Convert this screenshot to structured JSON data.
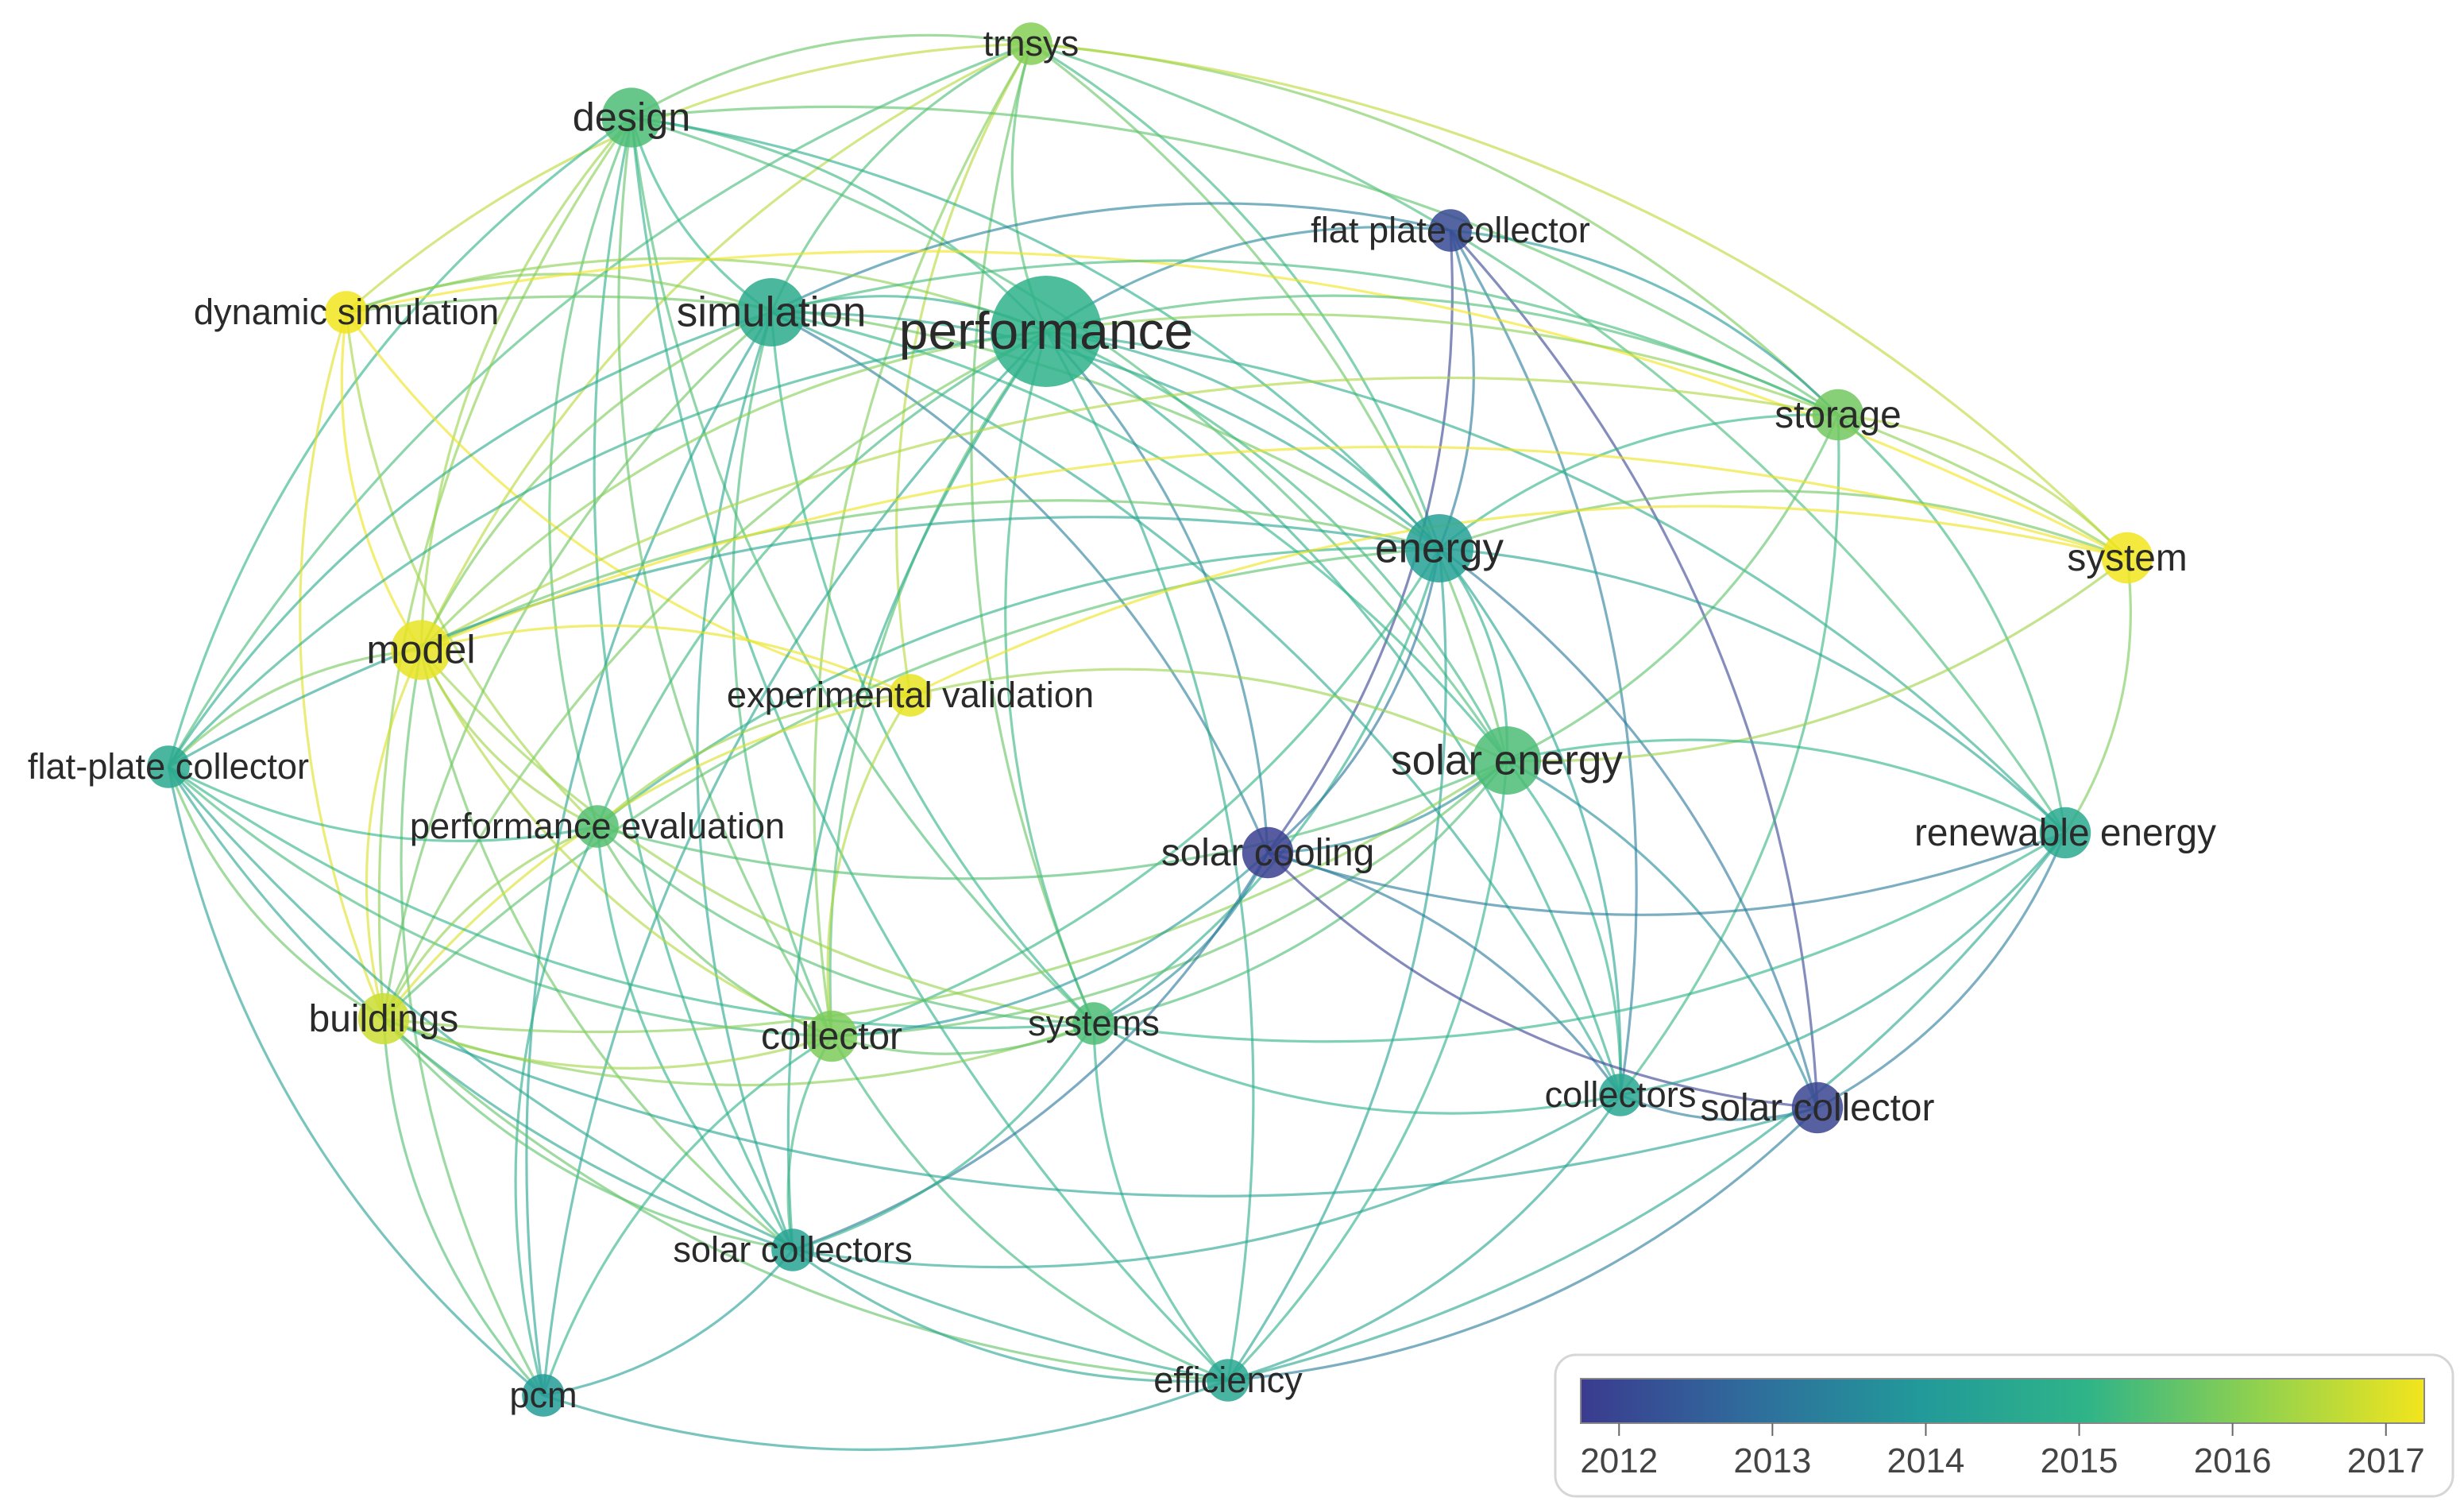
{
  "network": {
    "nodes": [
      {
        "id": "trnsys",
        "label": "trnsys",
        "year": 2015.9,
        "weight": 2
      },
      {
        "id": "design",
        "label": "design",
        "year": 2015.3,
        "weight": 4
      },
      {
        "id": "flat_plate_collector",
        "label": "flat plate collector",
        "year": 2012.3,
        "weight": 2
      },
      {
        "id": "dynamic_simulation",
        "label": "dynamic simulation",
        "year": 2017.0,
        "weight": 2
      },
      {
        "id": "simulation",
        "label": "simulation",
        "year": 2014.7,
        "weight": 5
      },
      {
        "id": "performance",
        "label": "performance",
        "year": 2014.9,
        "weight": 10
      },
      {
        "id": "storage",
        "label": "storage",
        "year": 2015.7,
        "weight": 3
      },
      {
        "id": "energy",
        "label": "energy",
        "year": 2014.3,
        "weight": 5
      },
      {
        "id": "system",
        "label": "system",
        "year": 2017.0,
        "weight": 3
      },
      {
        "id": "model",
        "label": "model",
        "year": 2016.9,
        "weight": 4
      },
      {
        "id": "experimental_validation",
        "label": "experimental validation",
        "year": 2016.9,
        "weight": 2
      },
      {
        "id": "flat_plate_collector_hyphen",
        "label": "flat-plate collector",
        "year": 2014.6,
        "weight": 2
      },
      {
        "id": "solar_energy",
        "label": "solar energy",
        "year": 2015.3,
        "weight": 5
      },
      {
        "id": "performance_evaluation",
        "label": "performance evaluation",
        "year": 2015.4,
        "weight": 2
      },
      {
        "id": "solar_cooling",
        "label": "solar cooling",
        "year": 2012.1,
        "weight": 3
      },
      {
        "id": "renewable_energy",
        "label": "renewable energy",
        "year": 2014.6,
        "weight": 3
      },
      {
        "id": "buildings",
        "label": "buildings",
        "year": 2016.6,
        "weight": 3
      },
      {
        "id": "collector",
        "label": "collector",
        "year": 2015.8,
        "weight": 3
      },
      {
        "id": "systems",
        "label": "systems",
        "year": 2015.3,
        "weight": 2
      },
      {
        "id": "collectors",
        "label": "collectors",
        "year": 2014.5,
        "weight": 2
      },
      {
        "id": "solar_collector",
        "label": "solar collector",
        "year": 2012.2,
        "weight": 3
      },
      {
        "id": "solar_collectors",
        "label": "solar collectors",
        "year": 2014.4,
        "weight": 2
      },
      {
        "id": "efficiency",
        "label": "efficiency",
        "year": 2014.5,
        "weight": 2
      },
      {
        "id": "pcm",
        "label": "pcm",
        "year": 2014.1,
        "weight": 2
      }
    ],
    "links": [
      [
        "trnsys",
        "design"
      ],
      [
        "trnsys",
        "simulation"
      ],
      [
        "trnsys",
        "performance"
      ],
      [
        "trnsys",
        "storage"
      ],
      [
        "trnsys",
        "energy"
      ],
      [
        "trnsys",
        "dynamic_simulation"
      ],
      [
        "trnsys",
        "model"
      ],
      [
        "trnsys",
        "flat_plate_collector_hyphen"
      ],
      [
        "trnsys",
        "experimental_validation"
      ],
      [
        "trnsys",
        "systems"
      ],
      [
        "trnsys",
        "solar_energy"
      ],
      [
        "trnsys",
        "renewable_energy"
      ],
      [
        "trnsys",
        "collector"
      ],
      [
        "trnsys",
        "system"
      ],
      [
        "design",
        "simulation"
      ],
      [
        "design",
        "performance"
      ],
      [
        "design",
        "energy"
      ],
      [
        "design",
        "model"
      ],
      [
        "design",
        "flat_plate_collector_hyphen"
      ],
      [
        "design",
        "collector"
      ],
      [
        "design",
        "solar_collectors"
      ],
      [
        "design",
        "buildings"
      ],
      [
        "design",
        "performance_evaluation"
      ],
      [
        "design",
        "solar_energy"
      ],
      [
        "design",
        "storage"
      ],
      [
        "design",
        "systems"
      ],
      [
        "design",
        "efficiency"
      ],
      [
        "flat_plate_collector",
        "energy"
      ],
      [
        "flat_plate_collector",
        "solar_cooling"
      ],
      [
        "flat_plate_collector",
        "solar_collector"
      ],
      [
        "flat_plate_collector",
        "performance"
      ],
      [
        "flat_plate_collector",
        "storage"
      ],
      [
        "flat_plate_collector",
        "collectors"
      ],
      [
        "flat_plate_collector",
        "simulation"
      ],
      [
        "dynamic_simulation",
        "simulation"
      ],
      [
        "dynamic_simulation",
        "model"
      ],
      [
        "dynamic_simulation",
        "performance_evaluation"
      ],
      [
        "dynamic_simulation",
        "buildings"
      ],
      [
        "dynamic_simulation",
        "experimental_validation"
      ],
      [
        "dynamic_simulation",
        "performance"
      ],
      [
        "dynamic_simulation",
        "system"
      ],
      [
        "dynamic_simulation",
        "energy"
      ],
      [
        "simulation",
        "performance"
      ],
      [
        "simulation",
        "energy"
      ],
      [
        "simulation",
        "model"
      ],
      [
        "simulation",
        "solar_energy"
      ],
      [
        "simulation",
        "collector"
      ],
      [
        "simulation",
        "systems"
      ],
      [
        "simulation",
        "solar_collectors"
      ],
      [
        "simulation",
        "storage"
      ],
      [
        "simulation",
        "flat_plate_collector_hyphen"
      ],
      [
        "simulation",
        "buildings"
      ],
      [
        "simulation",
        "pcm"
      ],
      [
        "simulation",
        "collectors"
      ],
      [
        "simulation",
        "solar_cooling"
      ],
      [
        "performance",
        "energy"
      ],
      [
        "performance",
        "solar_energy"
      ],
      [
        "performance",
        "storage"
      ],
      [
        "performance",
        "model"
      ],
      [
        "performance",
        "collector"
      ],
      [
        "performance",
        "systems"
      ],
      [
        "performance",
        "solar_collectors"
      ],
      [
        "performance",
        "efficiency"
      ],
      [
        "performance",
        "renewable_energy"
      ],
      [
        "performance",
        "collectors"
      ],
      [
        "performance",
        "solar_cooling"
      ],
      [
        "performance",
        "buildings"
      ],
      [
        "performance",
        "performance_evaluation"
      ],
      [
        "performance",
        "pcm"
      ],
      [
        "performance",
        "flat_plate_collector_hyphen"
      ],
      [
        "performance",
        "system"
      ],
      [
        "storage",
        "energy"
      ],
      [
        "storage",
        "system"
      ],
      [
        "storage",
        "renewable_energy"
      ],
      [
        "storage",
        "solar_energy"
      ],
      [
        "storage",
        "model"
      ],
      [
        "storage",
        "collectors"
      ],
      [
        "energy",
        "solar_energy"
      ],
      [
        "energy",
        "system"
      ],
      [
        "energy",
        "renewable_energy"
      ],
      [
        "energy",
        "model"
      ],
      [
        "energy",
        "collector"
      ],
      [
        "energy",
        "systems"
      ],
      [
        "energy",
        "collectors"
      ],
      [
        "energy",
        "solar_collector"
      ],
      [
        "energy",
        "efficiency"
      ],
      [
        "energy",
        "performance_evaluation"
      ],
      [
        "energy",
        "flat_plate_collector_hyphen"
      ],
      [
        "energy",
        "solar_cooling"
      ],
      [
        "energy",
        "buildings"
      ],
      [
        "system",
        "model"
      ],
      [
        "system",
        "renewable_energy"
      ],
      [
        "system",
        "solar_energy"
      ],
      [
        "system",
        "experimental_validation"
      ],
      [
        "model",
        "experimental_validation"
      ],
      [
        "model",
        "performance_evaluation"
      ],
      [
        "model",
        "buildings"
      ],
      [
        "model",
        "collector"
      ],
      [
        "model",
        "flat_plate_collector_hyphen"
      ],
      [
        "model",
        "systems"
      ],
      [
        "model",
        "solar_collectors"
      ],
      [
        "model",
        "pcm"
      ],
      [
        "experimental_validation",
        "performance_evaluation"
      ],
      [
        "experimental_validation",
        "collector"
      ],
      [
        "experimental_validation",
        "solar_energy"
      ],
      [
        "experimental_validation",
        "buildings"
      ],
      [
        "flat_plate_collector_hyphen",
        "performance_evaluation"
      ],
      [
        "flat_plate_collector_hyphen",
        "buildings"
      ],
      [
        "flat_plate_collector_hyphen",
        "collector"
      ],
      [
        "flat_plate_collector_hyphen",
        "pcm"
      ],
      [
        "flat_plate_collector_hyphen",
        "systems"
      ],
      [
        "flat_plate_collector_hyphen",
        "solar_collectors"
      ],
      [
        "flat_plate_collector_hyphen",
        "efficiency"
      ],
      [
        "solar_energy",
        "renewable_energy"
      ],
      [
        "solar_energy",
        "collectors"
      ],
      [
        "solar_energy",
        "solar_cooling"
      ],
      [
        "solar_energy",
        "collector"
      ],
      [
        "solar_energy",
        "systems"
      ],
      [
        "solar_energy",
        "solar_collector"
      ],
      [
        "solar_energy",
        "performance_evaluation"
      ],
      [
        "solar_energy",
        "buildings"
      ],
      [
        "solar_energy",
        "efficiency"
      ],
      [
        "performance_evaluation",
        "buildings"
      ],
      [
        "performance_evaluation",
        "collector"
      ],
      [
        "performance_evaluation",
        "systems"
      ],
      [
        "performance_evaluation",
        "solar_collectors"
      ],
      [
        "performance_evaluation",
        "pcm"
      ],
      [
        "solar_cooling",
        "collectors"
      ],
      [
        "solar_cooling",
        "solar_collector"
      ],
      [
        "solar_cooling",
        "systems"
      ],
      [
        "solar_cooling",
        "collector"
      ],
      [
        "solar_cooling",
        "solar_collectors"
      ],
      [
        "solar_cooling",
        "renewable_energy"
      ],
      [
        "renewable_energy",
        "collectors"
      ],
      [
        "renewable_energy",
        "solar_collector"
      ],
      [
        "renewable_energy",
        "efficiency"
      ],
      [
        "renewable_energy",
        "systems"
      ],
      [
        "buildings",
        "collector"
      ],
      [
        "buildings",
        "systems"
      ],
      [
        "buildings",
        "pcm"
      ],
      [
        "buildings",
        "efficiency"
      ],
      [
        "buildings",
        "solar_collectors"
      ],
      [
        "collector",
        "systems"
      ],
      [
        "collector",
        "solar_collectors"
      ],
      [
        "collector",
        "efficiency"
      ],
      [
        "collector",
        "pcm"
      ],
      [
        "systems",
        "efficiency"
      ],
      [
        "systems",
        "solar_collectors"
      ],
      [
        "systems",
        "collectors"
      ],
      [
        "collectors",
        "solar_collector"
      ],
      [
        "collectors",
        "efficiency"
      ],
      [
        "collectors",
        "solar_collectors"
      ],
      [
        "solar_collector",
        "efficiency"
      ],
      [
        "solar_collector",
        "buildings"
      ],
      [
        "solar_collectors",
        "efficiency"
      ],
      [
        "solar_collectors",
        "pcm"
      ],
      [
        "efficiency",
        "pcm"
      ]
    ]
  },
  "legend": {
    "ticks": [
      "2012",
      "2013",
      "2014",
      "2015",
      "2016",
      "2017"
    ],
    "tick_values": [
      2012,
      2013,
      2014,
      2015,
      2016,
      2017
    ],
    "range": [
      2011.75,
      2017.25
    ],
    "colors": [
      "#3b3b8f",
      "#2f6c9c",
      "#22999a",
      "#2fb488",
      "#8fd14f",
      "#f2e51d"
    ]
  }
}
